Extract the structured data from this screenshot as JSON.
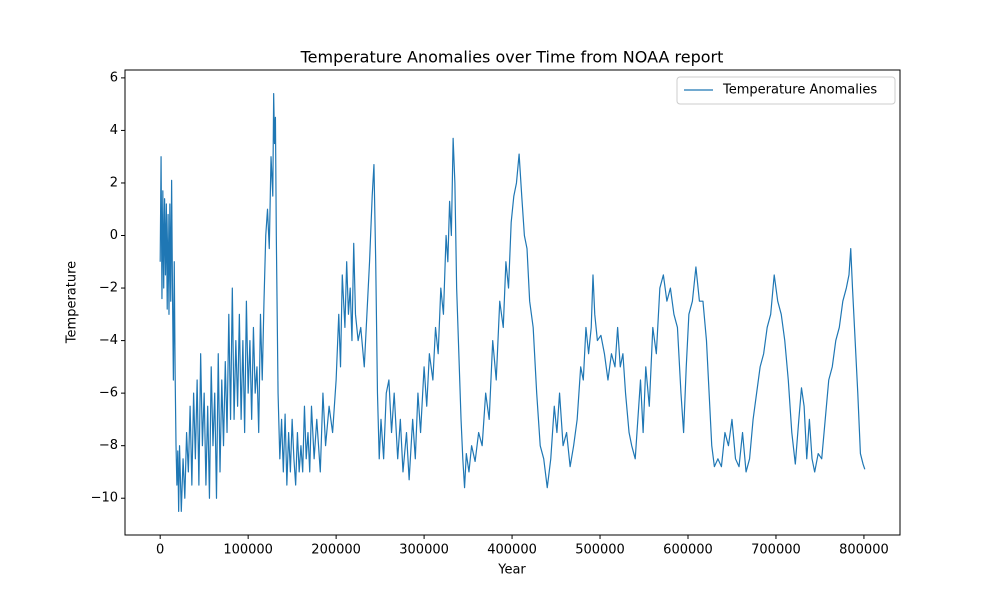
{
  "chart_data": {
    "type": "line",
    "title": "Temperature Anomalies over Time from NOAA report",
    "x_label": "Year",
    "y_label": "Temperature",
    "legend": "upper right",
    "x": [
      0,
      1000,
      2000,
      3000,
      4000,
      5000,
      6000,
      7000,
      8000,
      9000,
      10000,
      11000,
      12000,
      13000,
      14000,
      15000,
      16000,
      17000,
      18000,
      19000,
      20000,
      21000,
      22000,
      24000,
      26000,
      28000,
      30000,
      32000,
      34000,
      36000,
      38000,
      40000,
      42000,
      44000,
      46000,
      48000,
      50000,
      52000,
      54000,
      56000,
      58000,
      60000,
      62000,
      64000,
      66000,
      68000,
      70000,
      72000,
      74000,
      76000,
      78000,
      80000,
      82000,
      84000,
      86000,
      88000,
      90000,
      92000,
      94000,
      96000,
      98000,
      100000,
      102000,
      104000,
      106000,
      108000,
      110000,
      112000,
      114000,
      116000,
      118000,
      120000,
      122000,
      124000,
      126000,
      128000,
      129000,
      130000,
      131000,
      132000,
      134000,
      136000,
      138000,
      140000,
      142000,
      144000,
      146000,
      148000,
      150000,
      152000,
      154000,
      156000,
      158000,
      160000,
      162000,
      164000,
      166000,
      168000,
      170000,
      172000,
      175000,
      178000,
      182000,
      185000,
      188000,
      192000,
      196000,
      200000,
      203000,
      205000,
      207000,
      210000,
      212000,
      214000,
      216000,
      218000,
      220000,
      222000,
      225000,
      228000,
      232000,
      235000,
      238000,
      241000,
      243000,
      245000,
      247000,
      249000,
      251000,
      254000,
      257000,
      260000,
      263000,
      266000,
      270000,
      273000,
      276000,
      280000,
      283000,
      287000,
      290000,
      293000,
      296000,
      300000,
      303000,
      306000,
      310000,
      313000,
      316000,
      319000,
      322000,
      325000,
      327000,
      329000,
      331000,
      333000,
      335000,
      337000,
      340000,
      342000,
      344000,
      346000,
      348000,
      351000,
      354000,
      358000,
      362000,
      366000,
      370000,
      374000,
      378000,
      382000,
      386000,
      390000,
      393000,
      396000,
      399000,
      402000,
      405000,
      408000,
      411000,
      414000,
      417000,
      420000,
      424000,
      428000,
      432000,
      436000,
      440000,
      444000,
      448000,
      451000,
      454000,
      458000,
      462000,
      466000,
      470000,
      474000,
      478000,
      481000,
      484000,
      487000,
      490000,
      492000,
      494000,
      497000,
      501000,
      505000,
      509000,
      513000,
      517000,
      520000,
      523000,
      526000,
      529000,
      533000,
      536000,
      540000,
      543000,
      546000,
      549000,
      552000,
      556000,
      560000,
      564000,
      568000,
      572000,
      576000,
      580000,
      584000,
      588000,
      592000,
      595000,
      598000,
      601000,
      605000,
      609000,
      613000,
      617000,
      621000,
      624000,
      627000,
      630000,
      634000,
      638000,
      642000,
      646000,
      650000,
      654000,
      658000,
      662000,
      666000,
      670000,
      674000,
      678000,
      682000,
      686000,
      690000,
      694000,
      698000,
      702000,
      706000,
      710000,
      714000,
      718000,
      722000,
      726000,
      729000,
      732000,
      735000,
      738000,
      741000,
      744000,
      748000,
      752000,
      756000,
      760000,
      764000,
      768000,
      772000,
      776000,
      780000,
      783000,
      785000,
      787000,
      790000,
      793000,
      796000,
      799000,
      801000
    ],
    "series": [
      {
        "name": "Temperature Anomalies",
        "color": "#1f77b4",
        "values": [
          -1,
          3.0,
          -2.4,
          1.7,
          -2,
          1.4,
          -1.5,
          1.2,
          -2.8,
          0.8,
          -3,
          1.2,
          -2.5,
          2.1,
          -2.2,
          -5.5,
          -1,
          -5.3,
          -8,
          -9.5,
          -8.2,
          -10.5,
          -8,
          -10.5,
          -8.5,
          -10,
          -7.5,
          -9,
          -6.5,
          -9.5,
          -6,
          -8.5,
          -5.5,
          -9.5,
          -4.5,
          -8,
          -6,
          -9.5,
          -6.5,
          -10,
          -5,
          -8,
          -6,
          -10,
          -4.5,
          -9,
          -5.5,
          -8,
          -4.8,
          -7.5,
          -3,
          -7,
          -2,
          -7,
          -4,
          -6.5,
          -3,
          -7,
          -4,
          -7.5,
          -2.5,
          -6,
          -4,
          -7,
          -3.5,
          -6,
          -5,
          -7.5,
          -3,
          -5.5,
          -2.5,
          0,
          1,
          -0.5,
          3,
          1.5,
          5.4,
          3.5,
          4.5,
          0,
          -6,
          -8.5,
          -7,
          -9,
          -6.8,
          -9.5,
          -7.5,
          -9,
          -7,
          -8.5,
          -9.5,
          -7.5,
          -9,
          -8,
          -9,
          -6.5,
          -8.5,
          -7.5,
          -9,
          -6.5,
          -8.5,
          -7,
          -9,
          -6,
          -8,
          -6.5,
          -7.5,
          -5.5,
          -3,
          -5,
          -1.5,
          -3.5,
          -1,
          -3,
          -2,
          -4,
          -0.3,
          -3,
          -4,
          -3.5,
          -5,
          -3,
          -1,
          1.5,
          2.7,
          -1,
          -6,
          -8.5,
          -7,
          -8.5,
          -6,
          -5.5,
          -7.5,
          -6,
          -8.5,
          -7,
          -9,
          -7.5,
          -9.3,
          -7,
          -8.5,
          -6,
          -7.5,
          -5,
          -6.5,
          -4.5,
          -5.5,
          -3.5,
          -4.5,
          -2,
          -3,
          0,
          -1,
          1.3,
          0,
          3.7,
          2,
          -2,
          -5,
          -7,
          -8.5,
          -9.6,
          -8.3,
          -9,
          -8,
          -8.6,
          -7.5,
          -8,
          -6,
          -7,
          -4,
          -5.5,
          -2.5,
          -3.5,
          -1,
          -2,
          0.5,
          1.5,
          2,
          3.1,
          1.5,
          0,
          -0.5,
          -2.5,
          -3.5,
          -6,
          -8,
          -8.5,
          -9.6,
          -8.5,
          -6.5,
          -7.5,
          -6,
          -8,
          -7.5,
          -8.8,
          -8,
          -7,
          -5,
          -5.5,
          -3.5,
          -4.5,
          -3.5,
          -1.5,
          -3,
          -4,
          -3.8,
          -4.5,
          -5.5,
          -4.5,
          -5,
          -3.5,
          -5,
          -4.5,
          -6,
          -7.5,
          -8,
          -8.5,
          -7,
          -5.5,
          -7.5,
          -5,
          -6.5,
          -3.5,
          -4.5,
          -2,
          -1.5,
          -2.5,
          -2,
          -3,
          -3.5,
          -6,
          -7.5,
          -5,
          -3,
          -2.5,
          -1.2,
          -2.5,
          -2.5,
          -4,
          -6,
          -8,
          -8.8,
          -8.5,
          -8.8,
          -7.5,
          -8,
          -7,
          -8.5,
          -8.8,
          -7.5,
          -9,
          -8.5,
          -7,
          -6,
          -5,
          -4.5,
          -3.5,
          -3,
          -1.5,
          -2.5,
          -3,
          -4,
          -5.5,
          -7.5,
          -8.7,
          -7,
          -5.8,
          -6.5,
          -8.5,
          -7,
          -8.5,
          -9,
          -8.3,
          -8.5,
          -7,
          -5.5,
          -5,
          -4,
          -3.5,
          -2.5,
          -2,
          -1.5,
          -0.5,
          -2,
          -4,
          -6,
          -8.3,
          -8.7,
          -8.9
        ]
      }
    ],
    "xlim": [
      -40000,
      841000
    ],
    "xticks": [
      0,
      100000,
      200000,
      300000,
      400000,
      500000,
      600000,
      700000,
      800000
    ],
    "ylim": [
      -11.4,
      6.3
    ],
    "yticks": [
      {
        "value": -10,
        "label": "−10"
      },
      {
        "value": -8,
        "label": "−8"
      },
      {
        "value": -6,
        "label": "−6"
      },
      {
        "value": -4,
        "label": "−4"
      },
      {
        "value": -2,
        "label": "−2"
      },
      0,
      2,
      4,
      6
    ]
  }
}
